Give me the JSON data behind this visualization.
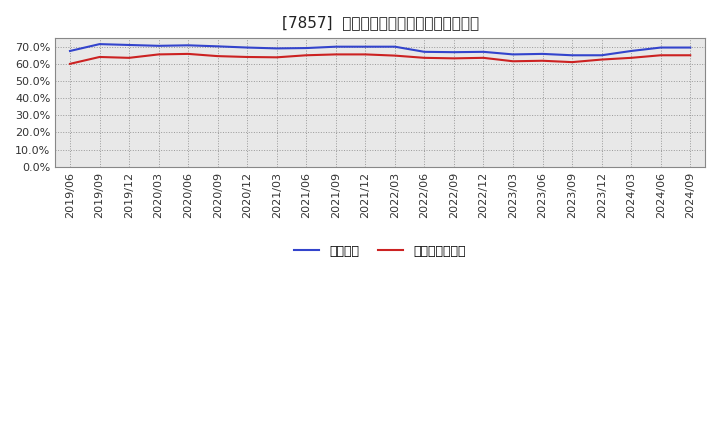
{
  "title": "[7857]  固定比率、固定長期適合率の推移",
  "x_labels": [
    "2019/06",
    "2019/09",
    "2019/12",
    "2020/03",
    "2020/06",
    "2020/09",
    "2020/12",
    "2021/03",
    "2021/06",
    "2021/09",
    "2021/12",
    "2022/03",
    "2022/06",
    "2022/09",
    "2022/12",
    "2023/03",
    "2023/06",
    "2023/09",
    "2023/12",
    "2024/03",
    "2024/06",
    "2024/09"
  ],
  "blue_values": [
    67.5,
    71.5,
    71.0,
    70.5,
    70.8,
    70.2,
    69.5,
    69.0,
    69.2,
    70.0,
    70.0,
    70.0,
    67.0,
    66.8,
    67.0,
    65.5,
    65.8,
    65.0,
    65.0,
    67.5,
    69.5,
    69.5
  ],
  "red_values": [
    60.0,
    64.0,
    63.5,
    65.5,
    65.8,
    64.5,
    64.0,
    63.8,
    65.0,
    65.5,
    65.5,
    64.8,
    63.5,
    63.2,
    63.5,
    61.5,
    61.8,
    61.0,
    62.5,
    63.5,
    65.0,
    65.0
  ],
  "blue_color": "#3344cc",
  "red_color": "#cc2222",
  "ylim": [
    0,
    75
  ],
  "yticks": [
    0,
    10,
    20,
    30,
    40,
    50,
    60,
    70
  ],
  "background_color": "#ffffff",
  "grid_color": "#999999",
  "legend_blue": "固定比率",
  "legend_red": "固定長期適合率",
  "title_color": "#222222",
  "plot_bg_color": "#e8e8e8"
}
